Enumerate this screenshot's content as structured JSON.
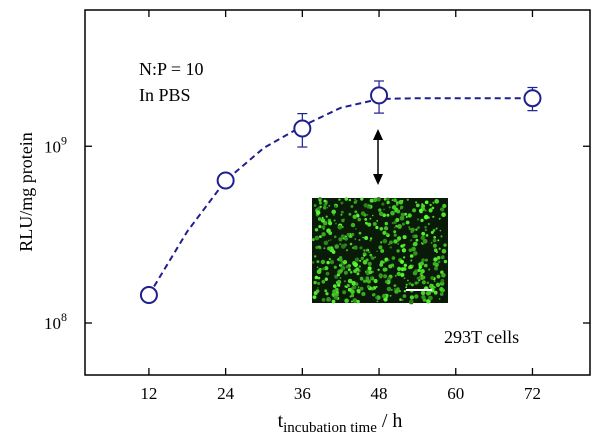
{
  "chart_data": {
    "type": "scatter",
    "ylabel": "RLU/mg protein",
    "xlabel": {
      "symbol": "t",
      "subscript": "incubation time",
      "unit": " / h"
    },
    "annotations": [
      "N:P = 10",
      "In PBS",
      "293T cells"
    ],
    "x": [
      12,
      24,
      36,
      48,
      72
    ],
    "series": [
      {
        "color": "#1f1f8f",
        "values": [
          144000000,
          640000000,
          1260000000,
          1940000000,
          1870000000
        ],
        "errors": [
          8000000,
          30000000,
          270000000,
          400000000,
          280000000
        ]
      }
    ],
    "fit": {
      "x": [
        12,
        18,
        24,
        30,
        36,
        42,
        48,
        54,
        60,
        66,
        72
      ],
      "values": [
        144000000,
        330000000,
        640000000,
        980000000,
        1300000000,
        1650000000,
        1850000000,
        1870000000,
        1870000000,
        1870000000,
        1870000000
      ]
    },
    "xlim": [
      2,
      81
    ],
    "ylim": [
      50800000,
      5900000000
    ],
    "log_y": true,
    "xticks": [
      12,
      24,
      36,
      48,
      60,
      72
    ],
    "yticks": [
      {
        "value": 100000000,
        "label": "10",
        "exponent": "8"
      },
      {
        "value": 1000000000,
        "label": "10",
        "exponent": "9"
      }
    ]
  }
}
